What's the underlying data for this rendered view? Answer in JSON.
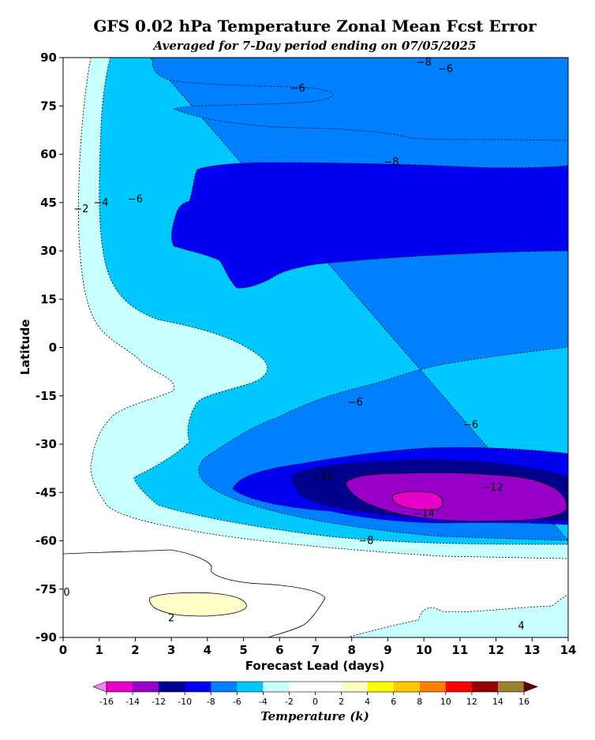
{
  "chart_data": {
    "type": "filled-contour",
    "title": "GFS 0.02 hPa Temperature Zonal Mean Fcst Error",
    "subtitle": "Averaged for 7-Day period ending on 07/05/2025",
    "xlabel": "Forecast Lead (days)",
    "ylabel": "Latitude",
    "xlim": [
      0,
      14
    ],
    "ylim": [
      -90,
      90
    ],
    "x_ticks": [
      0,
      1,
      2,
      3,
      4,
      5,
      6,
      7,
      8,
      9,
      10,
      11,
      12,
      13,
      14
    ],
    "y_ticks": [
      90,
      75,
      60,
      45,
      30,
      15,
      0,
      -15,
      -30,
      -45,
      -60,
      -75,
      -90
    ],
    "colorbar": {
      "label": "Temperature (k)",
      "ticks": [
        -16,
        -14,
        -12,
        -10,
        -8,
        -6,
        -4,
        -2,
        0,
        2,
        4,
        6,
        8,
        10,
        12,
        14,
        16
      ],
      "levels": [
        {
          "from": -16,
          "to": -14,
          "color": "#e600c8"
        },
        {
          "from": -14,
          "to": -12,
          "color": "#9600c8"
        },
        {
          "from": -12,
          "to": -10,
          "color": "#00008c"
        },
        {
          "from": -10,
          "to": -8,
          "color": "#0000f0"
        },
        {
          "from": -8,
          "to": -6,
          "color": "#0080ff"
        },
        {
          "from": -6,
          "to": -4,
          "color": "#00c8ff"
        },
        {
          "from": -4,
          "to": -2,
          "color": "#c8ffff"
        },
        {
          "from": -2,
          "to": 0,
          "color": "#ffffff"
        },
        {
          "from": 0,
          "to": 2,
          "color": "#ffffff"
        },
        {
          "from": 2,
          "to": 4,
          "color": "#ffffc8"
        },
        {
          "from": 4,
          "to": 6,
          "color": "#ffff00"
        },
        {
          "from": 6,
          "to": 8,
          "color": "#ffc800"
        },
        {
          "from": 8,
          "to": 10,
          "color": "#ff8000"
        },
        {
          "from": 10,
          "to": 12,
          "color": "#ff0000"
        },
        {
          "from": 12,
          "to": 14,
          "color": "#960000"
        },
        {
          "from": 14,
          "to": 16,
          "color": "#9b8232"
        }
      ],
      "under_color": "#ff82f0",
      "over_color": "#640000"
    },
    "contour_labels": [
      {
        "text": "−8",
        "x": 10.0,
        "y": 88.5
      },
      {
        "text": "−6",
        "x": 10.6,
        "y": 86.5
      },
      {
        "text": "−6",
        "x": 6.5,
        "y": 80.5
      },
      {
        "text": "−8",
        "x": 9.1,
        "y": 57.5
      },
      {
        "text": "−2",
        "x": 0.5,
        "y": 43
      },
      {
        "text": "−4",
        "x": 1.05,
        "y": 45
      },
      {
        "text": "−6",
        "x": 2.0,
        "y": 46
      },
      {
        "text": "−6",
        "x": 8.1,
        "y": -17
      },
      {
        "text": "−6",
        "x": 11.3,
        "y": -24
      },
      {
        "text": "−10",
        "x": 7.2,
        "y": -40
      },
      {
        "text": "−12",
        "x": 11.9,
        "y": -43.5
      },
      {
        "text": "−14",
        "x": 10.0,
        "y": -51.5
      },
      {
        "text": "−8",
        "x": 8.4,
        "y": -60
      },
      {
        "text": "0",
        "x": 0.1,
        "y": -76
      },
      {
        "text": "2",
        "x": 3.0,
        "y": -84
      },
      {
        "text": "4",
        "x": 12.7,
        "y": -86.5
      }
    ]
  }
}
